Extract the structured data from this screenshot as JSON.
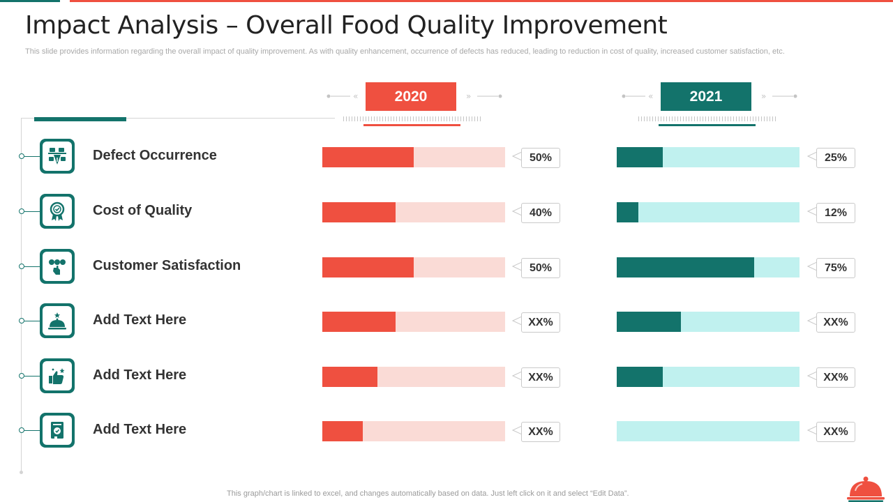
{
  "title": "Impact Analysis – Overall Food Quality Improvement",
  "subtitle": "This slide provides information regarding the overall impact of quality improvement. As with quality enhancement, occurrence of defects has reduced, leading to reduction in cost of quality,  increased customer satisfaction, etc.",
  "footer_note": "This graph/chart is linked to excel,  and changes automatically based on data. Just left click on it and select “Edit Data”.",
  "colors": {
    "red": "#ef5040",
    "red_light": "#fadbd6",
    "teal": "#13736b",
    "teal_light": "#c0f1ef"
  },
  "rows": [
    {
      "label": "Defect Occurrence",
      "icon": "traffic-icon"
    },
    {
      "label": "Cost of Quality",
      "icon": "quality-badge-icon"
    },
    {
      "label": "Customer Satisfaction",
      "icon": "rating-hand-icon"
    },
    {
      "label": "Add Text Here",
      "icon": "cloche-star-icon"
    },
    {
      "label": "Add Text Here",
      "icon": "thumbs-up-icon"
    },
    {
      "label": "Add Text Here",
      "icon": "certificate-icon"
    }
  ],
  "chart_data": {
    "type": "bar",
    "orientation": "horizontal",
    "categories": [
      "Defect Occurrence",
      "Cost of Quality",
      "Customer Satisfaction",
      "Add Text Here",
      "Add Text Here",
      "Add Text Here"
    ],
    "xlim": [
      0,
      100
    ],
    "series": [
      {
        "name": "2020",
        "values": [
          50,
          40,
          50,
          40,
          30,
          22
        ],
        "labels": [
          "50%",
          "40%",
          "50%",
          "XX%",
          "XX%",
          "XX%"
        ]
      },
      {
        "name": "2021",
        "values": [
          25,
          12,
          75,
          35,
          25,
          0
        ],
        "labels": [
          "25%",
          "12%",
          "75%",
          "XX%",
          "XX%",
          "XX%"
        ]
      }
    ]
  }
}
